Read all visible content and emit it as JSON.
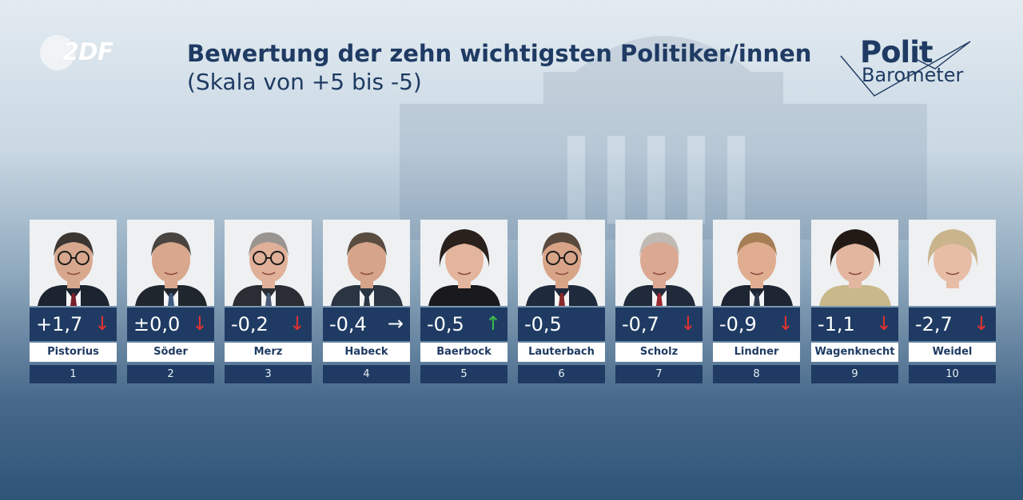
{
  "header": {
    "broadcaster": "2DF",
    "title": "Bewertung der zehn wichtigsten Politiker/innen",
    "subtitle": "(Skala von +5 bis -5)",
    "logo_line1": "Polit",
    "logo_line2": "Barometer"
  },
  "colors": {
    "navy": "#1f3b63",
    "arrow_down": "#e2322f",
    "arrow_up": "#3dbb4b",
    "arrow_neutral": "#ffffff"
  },
  "politicians": [
    {
      "rank": "1",
      "name": "Pistorius",
      "score": "+1,7",
      "trend": "↓",
      "trend_kind": "down",
      "suit": "#1c2430",
      "tie": "#7a1f2b",
      "hair": "#3b3632",
      "skin": "#d7a88e"
    },
    {
      "rank": "2",
      "name": "Söder",
      "score": "±0,0",
      "trend": "↓",
      "trend_kind": "down",
      "suit": "#20262e",
      "tie": "#3d5a80",
      "hair": "#4a4440",
      "skin": "#d9a78d"
    },
    {
      "rank": "3",
      "name": "Merz",
      "score": "-0,2",
      "trend": "↓",
      "trend_kind": "down",
      "suit": "#2a2d33",
      "tie": "#4a5a78",
      "hair": "#9a9590",
      "skin": "#e0b098"
    },
    {
      "rank": "4",
      "name": "Habeck",
      "score": "-0,4",
      "trend": "→",
      "trend_kind": "right",
      "suit": "#2a3442",
      "tie": "#2a3442",
      "hair": "#5a4c40",
      "skin": "#d6a48a"
    },
    {
      "rank": "5",
      "name": "Baerbock",
      "score": "-0,5",
      "trend": "↑",
      "trend_kind": "up",
      "suit": "#1a1a1e",
      "tie": "#c81d2a",
      "hair": "#2b211c",
      "skin": "#e3b59c"
    },
    {
      "rank": "6",
      "name": "Lauterbach",
      "score": "-0,5",
      "trend": "",
      "trend_kind": "none",
      "suit": "#1f2a3c",
      "tie": "#8a2a2a",
      "hair": "#5a4a3e",
      "skin": "#d8a488"
    },
    {
      "rank": "7",
      "name": "Scholz",
      "score": "-0,7",
      "trend": "↓",
      "trend_kind": "down",
      "suit": "#202a3a",
      "tie": "#9a2a30",
      "hair": "#bfbab4",
      "skin": "#dba892"
    },
    {
      "rank": "8",
      "name": "Lindner",
      "score": "-0,9",
      "trend": "↓",
      "trend_kind": "down",
      "suit": "#1d2532",
      "tie": "#2d3a4e",
      "hair": "#a67e55",
      "skin": "#e0ad90"
    },
    {
      "rank": "9",
      "name": "Wagenknecht",
      "score": "-1,1",
      "trend": "↓",
      "trend_kind": "down",
      "suit": "#c9b98a",
      "tie": "#c9b98a",
      "hair": "#231a16",
      "skin": "#e3b6a0"
    },
    {
      "rank": "10",
      "name": "Weidel",
      "score": "-2,7",
      "trend": "↓",
      "trend_kind": "down",
      "suit": "#eef0f2",
      "tie": "#eef0f2",
      "hair": "#c9b48c",
      "skin": "#e8bda6"
    }
  ]
}
